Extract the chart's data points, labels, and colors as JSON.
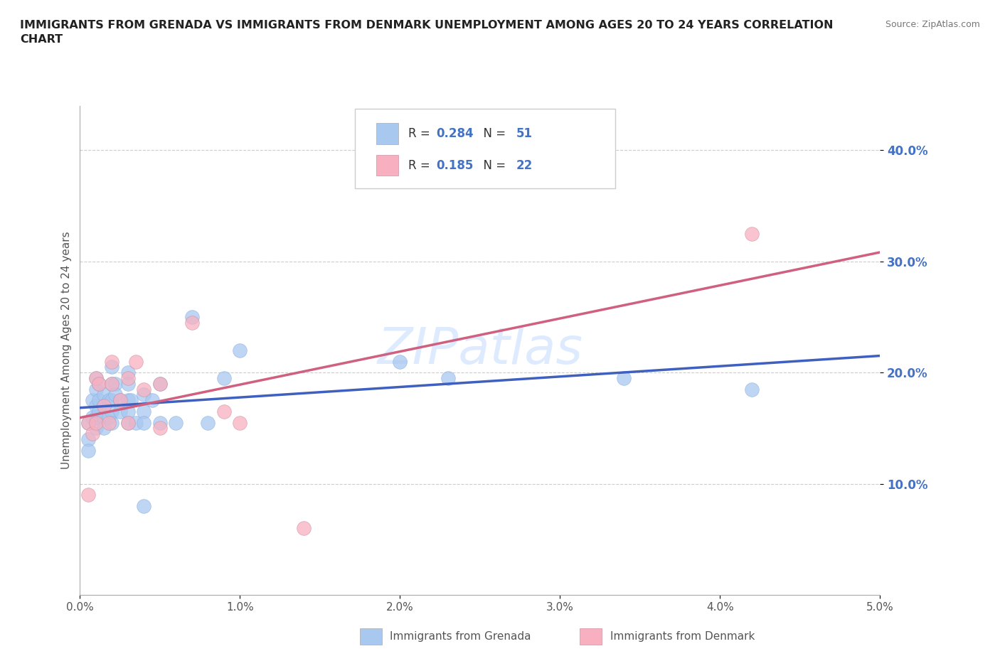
{
  "title": "IMMIGRANTS FROM GRENADA VS IMMIGRANTS FROM DENMARK UNEMPLOYMENT AMONG AGES 20 TO 24 YEARS CORRELATION\nCHART",
  "source": "Source: ZipAtlas.com",
  "ylabel": "Unemployment Among Ages 20 to 24 years",
  "xlim": [
    0.0,
    0.05
  ],
  "ylim": [
    0.0,
    0.44
  ],
  "xticks": [
    0.0,
    0.01,
    0.02,
    0.03,
    0.04,
    0.05
  ],
  "yticks": [
    0.1,
    0.2,
    0.3,
    0.4
  ],
  "ytick_labels": [
    "10.0%",
    "20.0%",
    "30.0%",
    "40.0%"
  ],
  "xtick_labels": [
    "0.0%",
    "1.0%",
    "2.0%",
    "3.0%",
    "4.0%",
    "5.0%"
  ],
  "grenada_color": "#A8C8F0",
  "denmark_color": "#F8B0C0",
  "grenada_line_color": "#4060C0",
  "denmark_line_color": "#D06080",
  "legend_R_grenada": "0.284",
  "legend_N_grenada": "51",
  "legend_R_denmark": "0.185",
  "legend_N_denmark": "22",
  "background_color": "#ffffff",
  "grenada_x": [
    0.0005,
    0.0005,
    0.0005,
    0.0008,
    0.0008,
    0.001,
    0.001,
    0.001,
    0.001,
    0.001,
    0.0012,
    0.0012,
    0.0012,
    0.0015,
    0.0015,
    0.0015,
    0.0015,
    0.0018,
    0.0018,
    0.002,
    0.002,
    0.002,
    0.002,
    0.002,
    0.0022,
    0.0022,
    0.0025,
    0.0025,
    0.003,
    0.003,
    0.003,
    0.003,
    0.003,
    0.0032,
    0.0035,
    0.004,
    0.004,
    0.004,
    0.004,
    0.0045,
    0.005,
    0.005,
    0.006,
    0.007,
    0.008,
    0.009,
    0.01,
    0.02,
    0.023,
    0.034,
    0.042
  ],
  "grenada_y": [
    0.155,
    0.14,
    0.13,
    0.175,
    0.16,
    0.195,
    0.185,
    0.17,
    0.16,
    0.15,
    0.19,
    0.175,
    0.165,
    0.18,
    0.17,
    0.16,
    0.15,
    0.175,
    0.16,
    0.205,
    0.19,
    0.175,
    0.165,
    0.155,
    0.19,
    0.18,
    0.175,
    0.165,
    0.2,
    0.19,
    0.175,
    0.165,
    0.155,
    0.175,
    0.155,
    0.18,
    0.165,
    0.155,
    0.08,
    0.175,
    0.19,
    0.155,
    0.155,
    0.25,
    0.155,
    0.195,
    0.22,
    0.21,
    0.195,
    0.195,
    0.185
  ],
  "denmark_x": [
    0.0005,
    0.0005,
    0.0008,
    0.001,
    0.001,
    0.0012,
    0.0015,
    0.0018,
    0.002,
    0.002,
    0.0025,
    0.003,
    0.003,
    0.0035,
    0.004,
    0.005,
    0.005,
    0.007,
    0.009,
    0.01,
    0.014,
    0.042
  ],
  "denmark_y": [
    0.155,
    0.09,
    0.145,
    0.195,
    0.155,
    0.19,
    0.17,
    0.155,
    0.21,
    0.19,
    0.175,
    0.195,
    0.155,
    0.21,
    0.185,
    0.19,
    0.15,
    0.245,
    0.165,
    0.155,
    0.06,
    0.325
  ]
}
